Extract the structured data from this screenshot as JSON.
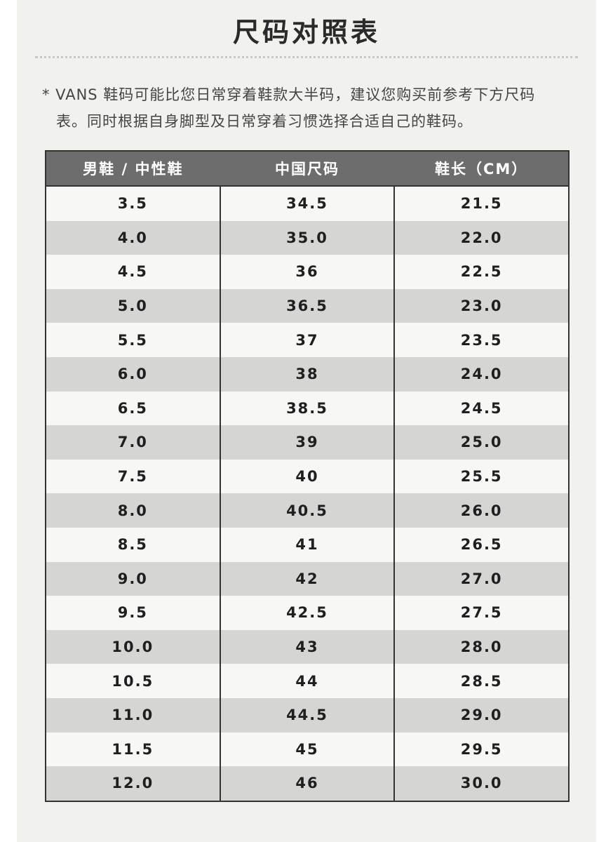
{
  "title": "尺码对照表",
  "note": {
    "line1": "* VANS 鞋码可能比您日常穿着鞋款大半码，建议您购买前参考下方尺码",
    "line2": "表。同时根据自身脚型及日常穿着习惯选择合适自己的鞋码。"
  },
  "table": {
    "headers": [
      "男鞋 / 中性鞋",
      "中国尺码",
      "鞋长（CM）"
    ],
    "rows": [
      [
        "3.5",
        "34.5",
        "21.5"
      ],
      [
        "4.0",
        "35.0",
        "22.0"
      ],
      [
        "4.5",
        "36",
        "22.5"
      ],
      [
        "5.0",
        "36.5",
        "23.0"
      ],
      [
        "5.5",
        "37",
        "23.5"
      ],
      [
        "6.0",
        "38",
        "24.0"
      ],
      [
        "6.5",
        "38.5",
        "24.5"
      ],
      [
        "7.0",
        "39",
        "25.0"
      ],
      [
        "7.5",
        "40",
        "25.5"
      ],
      [
        "8.0",
        "40.5",
        "26.0"
      ],
      [
        "8.5",
        "41",
        "26.5"
      ],
      [
        "9.0",
        "42",
        "27.0"
      ],
      [
        "9.5",
        "42.5",
        "27.5"
      ],
      [
        "10.0",
        "43",
        "28.0"
      ],
      [
        "10.5",
        "44",
        "28.5"
      ],
      [
        "11.0",
        "44.5",
        "29.0"
      ],
      [
        "11.5",
        "45",
        "29.5"
      ],
      [
        "12.0",
        "46",
        "30.0"
      ]
    ]
  },
  "colors": {
    "page_background": "#f1f1ee",
    "header_background": "#6d6d6d",
    "row_light": "#f7f7f5",
    "row_dark": "#d5d5d3",
    "border": "#333333"
  }
}
